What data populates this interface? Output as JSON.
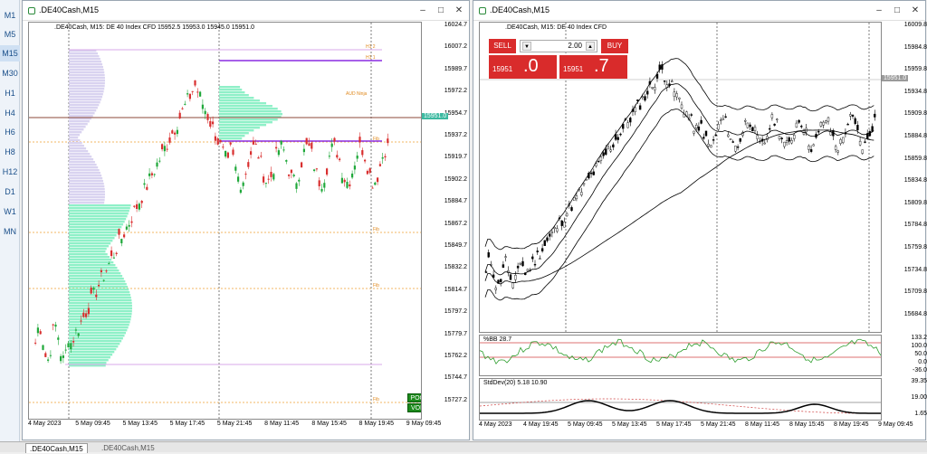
{
  "timeframes": [
    "M1",
    "M5",
    "M15",
    "M30",
    "H1",
    "H4",
    "H6",
    "H8",
    "H12",
    "D1",
    "W1",
    "MN"
  ],
  "active_timeframe": "M15",
  "left_window": {
    "title": ".DE40Cash,M15",
    "info": ".DE40Cash, M15:  DE 40 Index CFD   15952.5  15953.0  15945.0  15951.0",
    "prices": [
      "16024.7",
      "16007.2",
      "15989.7",
      "15972.2",
      "15954.7",
      "15937.2",
      "15919.7",
      "15902.2",
      "15884.7",
      "15867.2",
      "15849.7",
      "15832.2",
      "15814.7",
      "15797.2",
      "15779.7",
      "15762.2",
      "15744.7",
      "15727.2"
    ],
    "times": [
      "4 May 2023",
      "5 May 09:45",
      "5 May 13:45",
      "5 May 17:45",
      "5 May 21:45",
      "8 May 11:45",
      "8 May 15:45",
      "8 May 19:45",
      "9 May 09:45"
    ],
    "current_price": "15951.0",
    "poc_label": "POC",
    "vol_label": "VOL",
    "level_labels": [
      "H1 1",
      "H1 2",
      "AUD Ninja",
      "Fib",
      "Fib",
      "Fib",
      "Fib"
    ]
  },
  "right_window": {
    "title": ".DE40Cash,M15",
    "info": ".DE40Cash, M15:  DE 40 Index CFD",
    "prices": [
      "16009.8",
      "15984.8",
      "15959.8",
      "15934.8",
      "15909.8",
      "15884.8",
      "15859.8",
      "15834.8",
      "15809.8",
      "15784.8",
      "15759.8",
      "15734.8",
      "15709.8",
      "15684.8"
    ],
    "current_price": "15951.0",
    "times": [
      "4 May 2023",
      "4 May 19:45",
      "5 May 09:45",
      "5 May 13:45",
      "5 May 17:45",
      "5 May 21:45",
      "8 May 11:45",
      "8 May 15:45",
      "8 May 19:45",
      "9 May 09:45"
    ],
    "trade": {
      "sell_label": "SELL",
      "buy_label": "BUY",
      "volume": "2.00",
      "sell_small": "15951",
      "sell_large": ".0",
      "buy_small": "15951",
      "buy_large": ".7"
    },
    "bb_indicator": {
      "label": "%BB 28.7",
      "levels": [
        "133.2",
        "100.0",
        "50.0",
        "0.0",
        "-36.0"
      ]
    },
    "std_indicator": {
      "label": "StdDev(20) 5.18 10.90",
      "levels": [
        "39.35",
        "19.00",
        "1.65"
      ]
    }
  },
  "bottom_tabs": [
    ".DE40Cash,M15",
    ".DE40Cash,M15"
  ],
  "colors": {
    "bull": "#1fa83a",
    "bear": "#d93030",
    "profile": "#8ff0c8",
    "accent": "#3cb9a0"
  }
}
